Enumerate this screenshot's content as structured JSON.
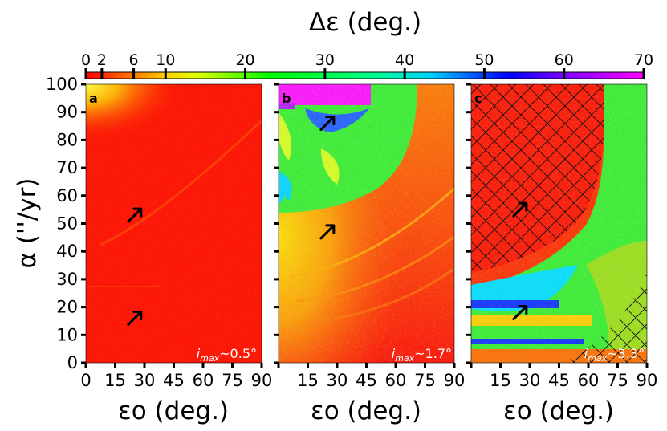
{
  "chart_data": {
    "type": "heatmap",
    "colorbar": {
      "title": "Δε (deg.)",
      "range": [
        0,
        70
      ],
      "ticks": [
        0,
        2,
        6,
        10,
        20,
        30,
        40,
        50,
        60,
        70
      ],
      "colormap": [
        "#ff0000",
        "#ff8000",
        "#ffff00",
        "#00ff00",
        "#00ffff",
        "#0000ff",
        "#ff00ff"
      ]
    },
    "shared_axes": {
      "xlabel": "εo (deg.)",
      "ylabel": "α (''/yr)",
      "xlim": [
        0,
        90
      ],
      "ylim": [
        0,
        100
      ],
      "xticks": [
        0,
        15,
        30,
        45,
        60,
        75,
        90
      ],
      "yticks": [
        0,
        10,
        20,
        30,
        40,
        50,
        60,
        70,
        80,
        90,
        100
      ]
    },
    "panels": [
      {
        "label": "a",
        "annotation": "imax~0.5°",
        "annotation_prefix": "i",
        "annotation_sub": "max",
        "annotation_suffix": "~0.5°",
        "xticklabels": [
          "0",
          "15",
          "30",
          "45",
          "60",
          "75",
          "90"
        ],
        "arrows": [
          {
            "x": 25,
            "y": 53
          },
          {
            "x": 25,
            "y": 16
          }
        ],
        "hatched_region": "none",
        "description_values": "Mostly Δε≈0–2°; Δε≈6–10° in top-left corner (ε<25, α>85); faint resonance curves"
      },
      {
        "label": "b",
        "annotation": "imax~1.7°",
        "annotation_prefix": "i",
        "annotation_sub": "max",
        "annotation_suffix": "~1.7°",
        "xticklabels": [
          "",
          "15",
          "30",
          "45",
          "60",
          "75",
          "90"
        ],
        "arrows": [
          {
            "x": 25,
            "y": 47
          },
          {
            "x": 25,
            "y": 86
          }
        ],
        "hatched_region": "none",
        "description_values": "Chaotic zone Δε≈20–70° for α above ~55''/yr at low εo; Δε≈60–70° band at α>93"
      },
      {
        "label": "c",
        "annotation": "imax~3.3°",
        "annotation_prefix": "i",
        "annotation_sub": "max",
        "annotation_suffix": "~3.3°",
        "xticklabels": [
          "",
          "15",
          "30",
          "45",
          "60",
          "75",
          "90"
        ],
        "arrows": [
          {
            "x": 25,
            "y": 55
          },
          {
            "x": 25,
            "y": 18
          }
        ],
        "hatched_region": "top-left region above resonance, and bottom-right corner",
        "description_values": "Wide chaotic band Δε≈25–50° sweeping from low α at high εo to high α at ~75°; Δε≈45–50° bands near α≈10–22"
      }
    ]
  }
}
